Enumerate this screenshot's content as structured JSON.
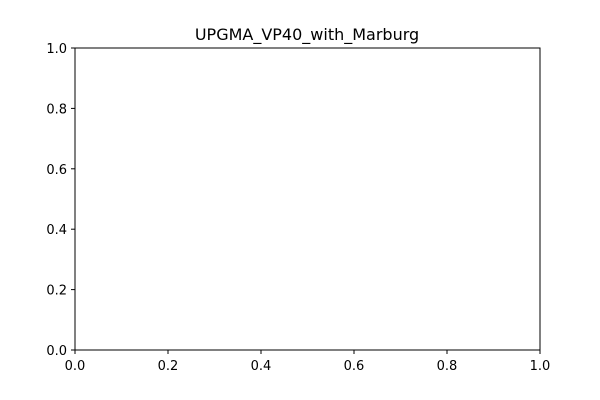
{
  "chart_data": {
    "type": "line",
    "title": "UPGMA_VP40_with_Marburg",
    "xlabel": "",
    "ylabel": "",
    "xlim": [
      0,
      1
    ],
    "ylim": [
      0,
      1
    ],
    "xticks": [
      0,
      0.2,
      0.4,
      0.6,
      0.8,
      1
    ],
    "yticks": [
      0,
      0.2,
      0.4,
      0.6,
      0.8,
      1
    ],
    "xtick_labels": [
      "0.0",
      "0.2",
      "0.4",
      "0.6",
      "0.8",
      "1.0"
    ],
    "ytick_labels": [
      "0.0",
      "0.2",
      "0.4",
      "0.6",
      "0.8",
      "1.0"
    ],
    "grid": false,
    "series": []
  }
}
